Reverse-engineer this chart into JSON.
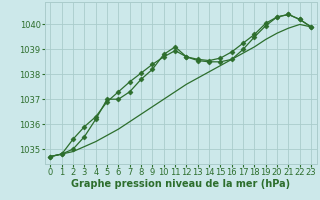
{
  "background_color": "#cce8ea",
  "grid_color": "#aacccc",
  "line_color": "#2d6e2d",
  "marker_color": "#2d6e2d",
  "xlabel": "Graphe pression niveau de la mer (hPa)",
  "xlabel_fontsize": 7,
  "tick_fontsize": 6,
  "xlim": [
    -0.5,
    23.5
  ],
  "ylim": [
    1034.4,
    1040.9
  ],
  "yticks": [
    1035,
    1036,
    1037,
    1038,
    1039,
    1040
  ],
  "xticks": [
    0,
    1,
    2,
    3,
    4,
    5,
    6,
    7,
    8,
    9,
    10,
    11,
    12,
    13,
    14,
    15,
    16,
    17,
    18,
    19,
    20,
    21,
    22,
    23
  ],
  "series": [
    {
      "x": [
        0,
        1,
        2,
        3,
        4,
        5,
        6,
        7,
        8,
        9,
        10,
        11,
        12,
        13,
        14,
        15,
        16,
        17,
        18,
        19,
        20,
        21,
        22,
        23
      ],
      "y": [
        1034.7,
        1034.8,
        1035.0,
        1035.5,
        1036.2,
        1037.0,
        1037.0,
        1037.3,
        1037.8,
        1038.2,
        1038.8,
        1039.1,
        1038.7,
        1038.55,
        1038.5,
        1038.5,
        1038.6,
        1039.0,
        1039.5,
        1039.95,
        1040.3,
        1040.4,
        1040.2,
        1039.9
      ],
      "marker": "D",
      "markersize": 2.5,
      "linewidth": 0.9
    },
    {
      "x": [
        0,
        1,
        2,
        3,
        4,
        5,
        6,
        7,
        8,
        9,
        10,
        11,
        12,
        13,
        14,
        15,
        16,
        17,
        18,
        19,
        20,
        21,
        22,
        23
      ],
      "y": [
        1034.7,
        1034.8,
        1035.4,
        1035.9,
        1036.3,
        1036.9,
        1037.3,
        1037.7,
        1038.05,
        1038.4,
        1038.7,
        1038.95,
        1038.7,
        1038.6,
        1038.55,
        1038.65,
        1038.9,
        1039.25,
        1039.6,
        1040.05,
        1040.3,
        1040.4,
        1040.2,
        1039.9
      ],
      "marker": "D",
      "markersize": 2.5,
      "linewidth": 0.9
    },
    {
      "x": [
        0,
        1,
        2,
        3,
        4,
        5,
        6,
        7,
        8,
        9,
        10,
        11,
        12,
        13,
        14,
        15,
        16,
        17,
        18,
        19,
        20,
        21,
        22,
        23
      ],
      "y": [
        1034.7,
        1034.8,
        1034.9,
        1035.1,
        1035.3,
        1035.55,
        1035.8,
        1036.1,
        1036.4,
        1036.7,
        1037.0,
        1037.3,
        1037.6,
        1037.85,
        1038.1,
        1038.35,
        1038.6,
        1038.85,
        1039.1,
        1039.4,
        1039.65,
        1039.85,
        1040.0,
        1039.9
      ],
      "marker": null,
      "markersize": 0,
      "linewidth": 0.9
    }
  ]
}
